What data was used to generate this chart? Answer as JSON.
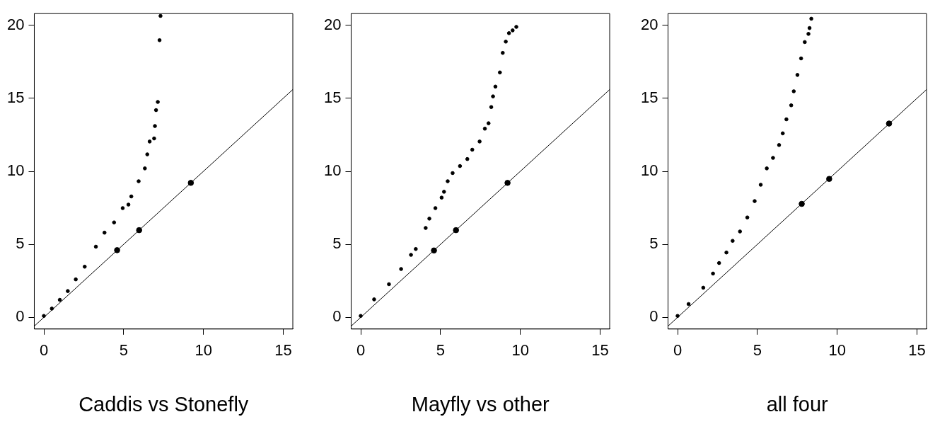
{
  "chart_data": [
    {
      "type": "scatter",
      "xlabel": "Caddis vs Stonefly",
      "xlim": [
        -0.6,
        15.6
      ],
      "ylim": [
        -0.8,
        20.8
      ],
      "xticks": [
        0,
        5,
        10,
        15
      ],
      "yticks": [
        0,
        5,
        10,
        15,
        20
      ],
      "grid": false,
      "legend": false,
      "series": [
        {
          "color": "#000000",
          "marker": "circle",
          "x": [
            0,
            0.5,
            1,
            1.5,
            2,
            2.56,
            3.26,
            3.8,
            4.4,
            4.94,
            5.3,
            5.48,
            5.94,
            6.33,
            6.48,
            6.63,
            6.91,
            6.96,
            7.03,
            7.14,
            7.25,
            7.31
          ],
          "values": [
            0.1,
            0.6,
            1.2,
            1.8,
            2.6,
            3.47,
            4.84,
            5.8,
            6.5,
            7.48,
            7.72,
            8.28,
            9.32,
            10.2,
            11.16,
            12.04,
            12.25,
            13.1,
            14.19,
            14.75,
            18.98,
            20.64
          ]
        },
        {
          "color": "#000000",
          "marker": "circle",
          "x": [
            4.59,
            5.97,
            9.21
          ],
          "values": [
            4.6,
            5.97,
            9.21
          ]
        },
        {
          "type": "line",
          "color": "#000000",
          "marker": "none",
          "x": [
            -0.6,
            15.6
          ],
          "values": [
            -0.6,
            15.6
          ]
        }
      ]
    },
    {
      "type": "scatter",
      "xlabel": "Mayfly vs other",
      "xlim": [
        -0.6,
        15.6
      ],
      "ylim": [
        -0.8,
        20.8
      ],
      "xticks": [
        0,
        5,
        10,
        15
      ],
      "yticks": [
        0,
        5,
        10,
        15,
        20
      ],
      "grid": false,
      "legend": false,
      "series": [
        {
          "color": "#000000",
          "marker": "circle",
          "x": [
            0,
            0.84,
            1.77,
            2.53,
            3.15,
            3.45,
            4.07,
            4.3,
            4.68,
            5.07,
            5.22,
            5.45,
            5.76,
            6.22,
            6.68,
            6.99,
            7.45,
            7.78,
            8.01,
            8.18,
            8.29,
            8.44,
            8.72,
            8.9,
            9.09,
            9.29,
            9.52,
            9.75
          ],
          "values": [
            0.1,
            1.23,
            2.27,
            3.31,
            4.28,
            4.68,
            6.12,
            6.76,
            7.48,
            8.2,
            8.6,
            9.32,
            9.88,
            10.36,
            10.84,
            11.48,
            12.04,
            12.92,
            13.29,
            14.4,
            15.13,
            15.8,
            16.77,
            18.11,
            18.88,
            19.46,
            19.65,
            19.89
          ]
        },
        {
          "color": "#000000",
          "marker": "circle",
          "x": [
            4.59,
            5.97,
            9.2
          ],
          "values": [
            4.58,
            5.97,
            9.21
          ]
        },
        {
          "type": "line",
          "color": "#000000",
          "marker": "none",
          "x": [
            -0.6,
            15.6
          ],
          "values": [
            -0.6,
            15.6
          ]
        }
      ]
    },
    {
      "type": "scatter",
      "xlabel": "all four",
      "xlim": [
        -0.6,
        15.6
      ],
      "ylim": [
        -0.8,
        20.8
      ],
      "xticks": [
        0,
        5,
        10,
        15
      ],
      "yticks": [
        0,
        5,
        10,
        15,
        20
      ],
      "grid": false,
      "legend": false,
      "series": [
        {
          "color": "#000000",
          "marker": "circle",
          "x": [
            0,
            0.69,
            1.61,
            2.22,
            2.6,
            3.06,
            3.45,
            3.91,
            4.37,
            4.83,
            5.21,
            5.59,
            5.98,
            6.36,
            6.59,
            6.82,
            7.12,
            7.28,
            7.51,
            7.74,
            7.97,
            8.2,
            8.27,
            8.38
          ],
          "values": [
            0.1,
            0.91,
            2.03,
            3.0,
            3.72,
            4.44,
            5.24,
            5.88,
            6.84,
            7.96,
            9.08,
            10.2,
            10.92,
            11.8,
            12.6,
            13.56,
            14.52,
            15.48,
            16.6,
            17.73,
            18.85,
            19.41,
            19.81,
            20.45
          ]
        },
        {
          "color": "#000000",
          "marker": "circle",
          "x": [
            7.78,
            9.5,
            13.25
          ],
          "values": [
            7.77,
            9.48,
            13.27
          ]
        },
        {
          "type": "line",
          "color": "#000000",
          "marker": "none",
          "x": [
            -0.6,
            15.6
          ],
          "values": [
            -0.6,
            15.6
          ]
        }
      ]
    }
  ]
}
